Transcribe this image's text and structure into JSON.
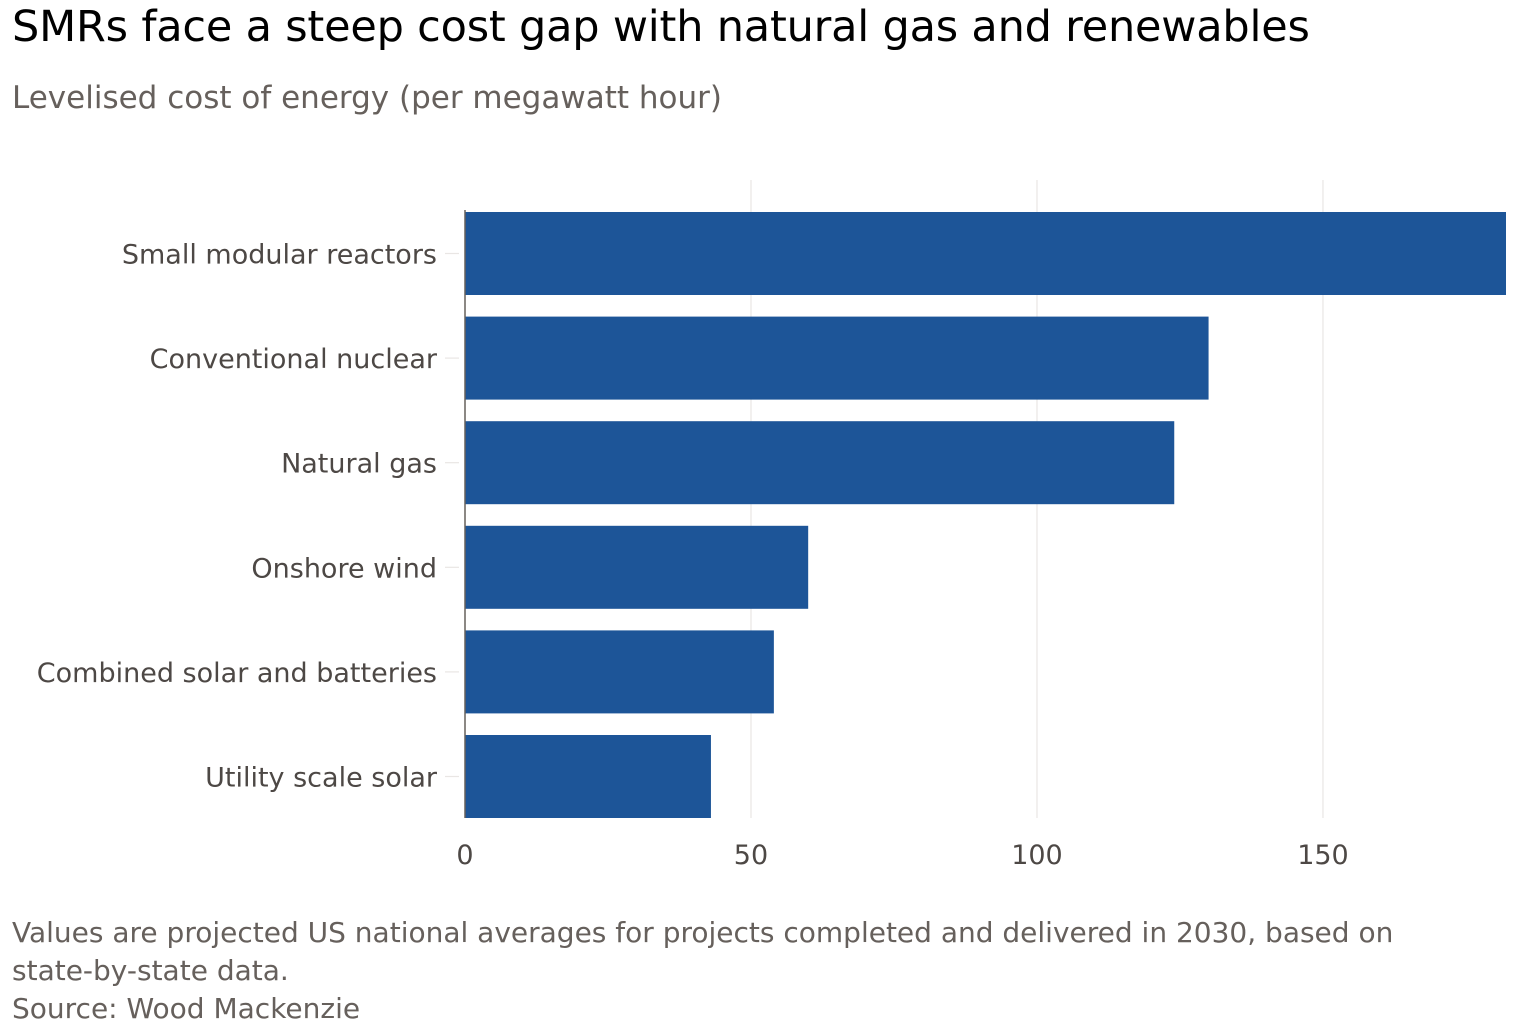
{
  "chart_data": {
    "type": "bar",
    "orientation": "horizontal",
    "title": "SMRs face a steep cost gap with natural gas and renewables",
    "subtitle": "Levelised cost of energy (per megawatt hour)",
    "categories": [
      "Small modular reactors",
      "Conventional nuclear",
      "Natural gas",
      "Onshore wind",
      "Combined solar and batteries",
      "Utility scale solar"
    ],
    "values": [
      182,
      130,
      124,
      60,
      54,
      43
    ],
    "xlim": [
      0,
      182
    ],
    "xticks": [
      0,
      50,
      100,
      150
    ],
    "xtick_labels": [
      "0",
      "50",
      "100",
      "150"
    ],
    "xlabel": "",
    "ylabel": "",
    "grid": true,
    "bar_color": "#1d5598",
    "note": "Values are projected US national averages for projects completed and delivered in 2030, based on state-by-state data.",
    "source": "Source: Wood Mackenzie"
  }
}
